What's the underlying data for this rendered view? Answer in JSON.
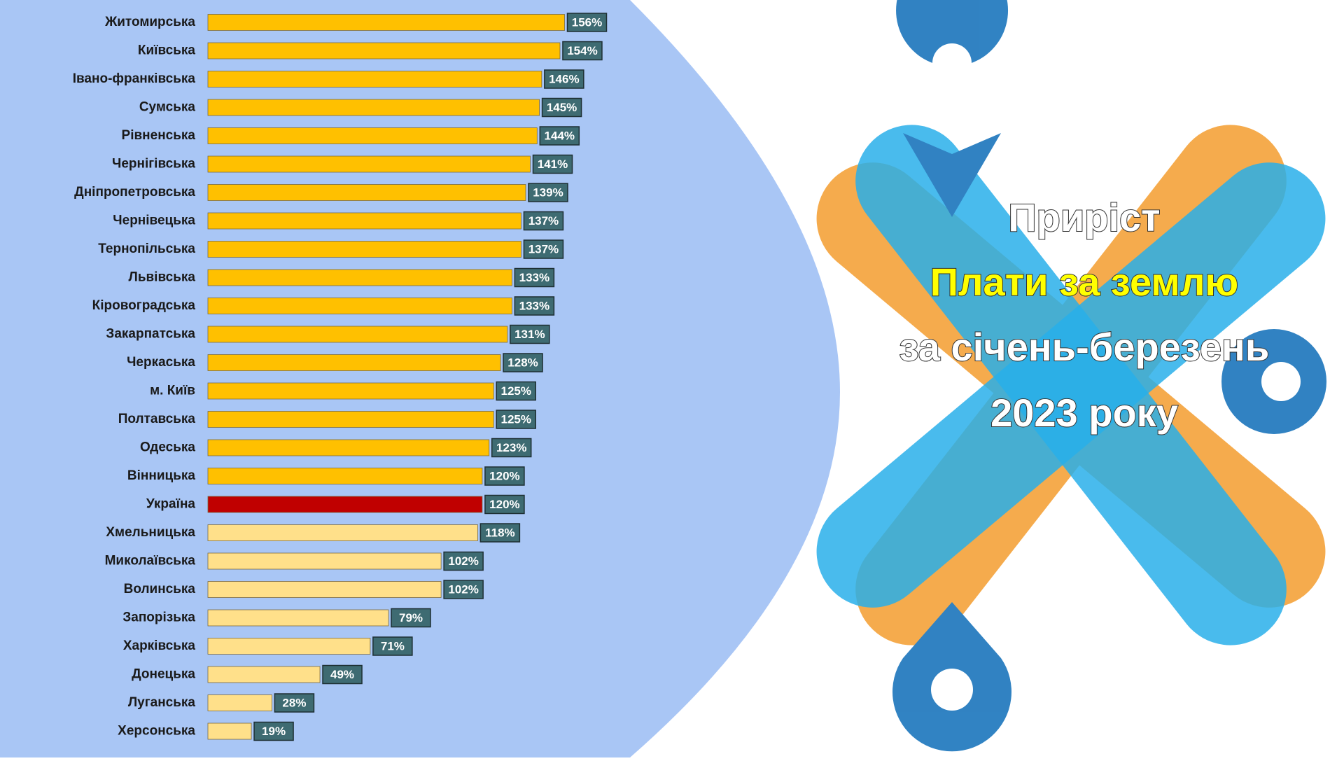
{
  "chart_data": {
    "type": "bar",
    "title_lines": [
      "Приріст",
      "Плати за землю",
      "за січень-березень",
      "2023 року"
    ],
    "categories": [
      "Житомирська",
      "Київська",
      "Івано-франківська",
      "Сумська",
      "Рівненська",
      "Чернігівська",
      "Дніпропетровська",
      "Чернівецька",
      "Тернопільська",
      "Львівська",
      "Кіровоградська",
      "Закарпатська",
      "Черкаська",
      "м. Київ",
      "Полтавська",
      "Одеська",
      "Вінницька",
      "Україна",
      "Хмельницька",
      "Миколаївська",
      "Волинська",
      "Запорізька",
      "Харківська",
      "Донецька",
      "Луганська",
      "Херсонська"
    ],
    "values": [
      156,
      154,
      146,
      145,
      144,
      141,
      139,
      137,
      137,
      133,
      133,
      131,
      128,
      125,
      125,
      123,
      120,
      120,
      118,
      102,
      102,
      79,
      71,
      49,
      28,
      19
    ],
    "value_labels": [
      "156%",
      "154%",
      "146%",
      "145%",
      "144%",
      "141%",
      "139%",
      "137%",
      "137%",
      "133%",
      "133%",
      "131%",
      "128%",
      "125%",
      "125%",
      "123%",
      "120%",
      "120%",
      "118%",
      "102%",
      "102%",
      "79%",
      "71%",
      "49%",
      "28%",
      "19%"
    ],
    "colors": [
      "#FFC000",
      "#FFC000",
      "#FFC000",
      "#FFC000",
      "#FFC000",
      "#FFC000",
      "#FFC000",
      "#FFC000",
      "#FFC000",
      "#FFC000",
      "#FFC000",
      "#FFC000",
      "#FFC000",
      "#FFC000",
      "#FFC000",
      "#FFC000",
      "#FFC000",
      "#C00000",
      "#FFE08A",
      "#FFE08A",
      "#FFE08A",
      "#FFE08A",
      "#FFE08A",
      "#FFE08A",
      "#FFE08A",
      "#FFE08A"
    ]
  }
}
